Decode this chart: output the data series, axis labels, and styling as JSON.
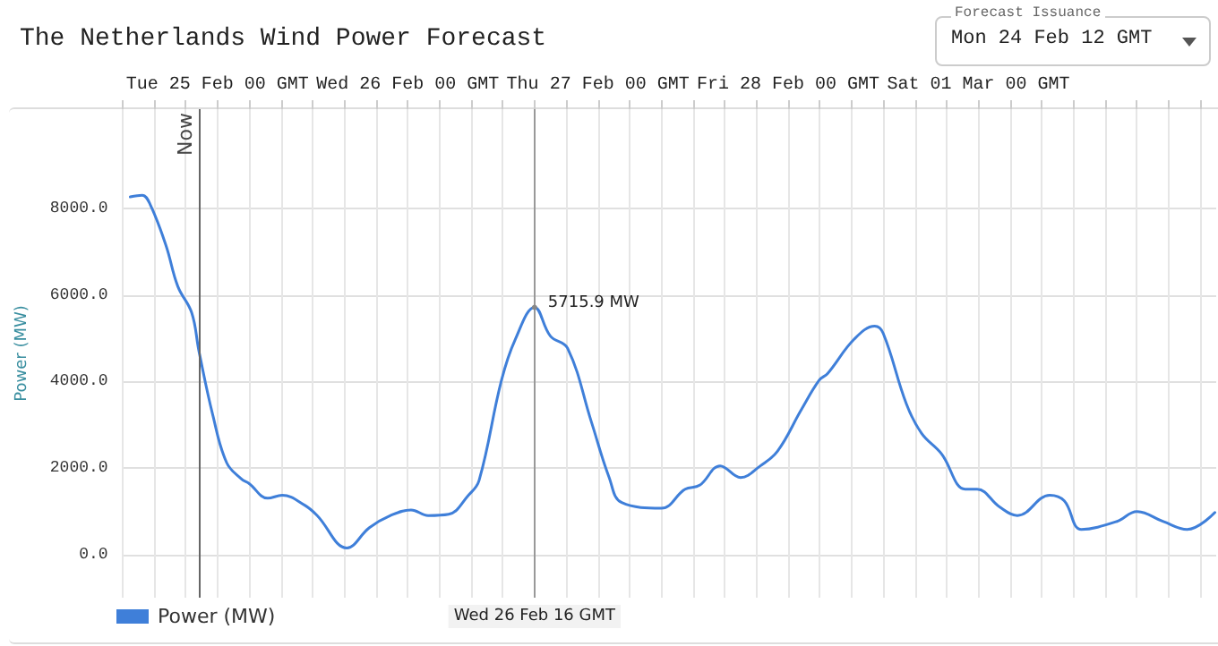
{
  "chart_data": {
    "type": "line",
    "title": "The Netherlands Wind Power Forecast",
    "ylabel": "Power (MW)",
    "x": [
      "--02-24T13:00",
      "--02-24T14:30",
      "--02-24T15:30",
      "--02-24T17:30",
      "--02-24T19:00",
      "--02-24T20:45",
      "--02-24T21:40",
      "--02-24T23:25",
      "--02-25T01:10",
      "--02-25T03:00",
      "--02-25T04:00",
      "--02-25T06:20",
      "--02-25T08:10",
      "--02-25T11:00",
      "--02-25T12:35",
      "--02-25T16:20",
      "--02-25T19:10",
      "--02-25T21:50",
      "--02-26T00:25",
      "--02-26T02:35",
      "--02-26T05:10",
      "--02-26T07:40",
      "--02-26T09:00",
      "--02-26T11:50",
      "--02-26T13:35",
      "--02-26T16:00",
      "--02-26T18:00",
      "--02-26T20:10",
      "--02-26T23:10",
      "--02-27T01:25",
      "--02-27T03:00",
      "--02-27T08:00",
      "--02-27T11:00",
      "--02-27T12:50",
      "--02-27T15:25",
      "--02-27T18:00",
      "--02-27T20:30",
      "--02-27T22:40",
      "--02-28T01:40",
      "--02-28T03:55",
      "--02-28T05:00",
      "--02-28T08:20",
      "--02-28T10:55",
      "--02-28T12:00",
      "--02-28T14:55",
      "--02-28T16:50",
      "--02-28T19:20",
      "--02-28T22:20",
      "--02-28T23:50",
      "--03-01T02:40",
      "--03-01T04:55",
      "--03-01T09:00",
      "--03-01T10:50",
      "--03-01T13:00",
      "--03-01T17:25",
      "--03-01T20:00",
      "--03-01T23:20",
      "--03-02T02:20",
      "--03-02T05:50"
    ],
    "series": [
      {
        "name": "Power (MW)",
        "color": "#3f7fd9",
        "values": [
          8270,
          8310,
          8100,
          7150,
          6200,
          5590,
          4700,
          3220,
          2120,
          1750,
          1640,
          1300,
          1370,
          1140,
          900,
          150,
          620,
          900,
          1030,
          900,
          930,
          1370,
          1710,
          4030,
          4980,
          5715.9,
          5050,
          4770,
          3070,
          1780,
          1200,
          1070,
          1510,
          1600,
          2050,
          1780,
          2050,
          2390,
          3350,
          4030,
          4190,
          4980,
          5280,
          5110,
          3480,
          2800,
          2330,
          1510,
          1510,
          1100,
          900,
          1370,
          1240,
          580,
          760,
          990,
          760,
          580,
          970
        ]
      }
    ],
    "xlim": [
      "--02-24T12:00",
      "--03-02T06:00"
    ],
    "xticks": [
      {
        "value": "--02-24T12:00",
        "label": null
      },
      {
        "value": "--02-24T16:00",
        "label": null
      },
      {
        "value": "--02-24T20:00",
        "label": null
      },
      {
        "value": "--02-25T00:00",
        "label": "Tue 25 Feb 00 GMT"
      },
      {
        "value": "--02-25T04:00",
        "label": null
      },
      {
        "value": "--02-25T08:00",
        "label": null
      },
      {
        "value": "--02-25T12:00",
        "label": null
      },
      {
        "value": "--02-25T16:00",
        "label": null
      },
      {
        "value": "--02-25T20:00",
        "label": null
      },
      {
        "value": "--02-26T00:00",
        "label": "Wed 26 Feb 00 GMT"
      },
      {
        "value": "--02-26T04:00",
        "label": null
      },
      {
        "value": "--02-26T08:00",
        "label": null
      },
      {
        "value": "--02-26T12:00",
        "label": null
      },
      {
        "value": "--02-26T16:00",
        "label": null
      },
      {
        "value": "--02-26T20:00",
        "label": null
      },
      {
        "value": "--02-27T00:00",
        "label": "Thu 27 Feb 00 GMT"
      },
      {
        "value": "--02-27T04:00",
        "label": null
      },
      {
        "value": "--02-27T08:00",
        "label": null
      },
      {
        "value": "--02-27T12:00",
        "label": null
      },
      {
        "value": "--02-27T16:00",
        "label": null
      },
      {
        "value": "--02-27T20:00",
        "label": null
      },
      {
        "value": "--02-28T00:00",
        "label": "Fri 28 Feb 00 GMT"
      },
      {
        "value": "--02-28T04:00",
        "label": null
      },
      {
        "value": "--02-28T08:00",
        "label": null
      },
      {
        "value": "--02-28T12:00",
        "label": null
      },
      {
        "value": "--02-28T16:00",
        "label": null
      },
      {
        "value": "--02-28T20:00",
        "label": null
      },
      {
        "value": "--03-01T00:00",
        "label": "Sat 01 Mar 00 GMT"
      },
      {
        "value": "--03-01T04:00",
        "label": null
      },
      {
        "value": "--03-01T08:00",
        "label": null
      },
      {
        "value": "--03-01T12:00",
        "label": null
      },
      {
        "value": "--03-01T16:00",
        "label": null
      },
      {
        "value": "--03-01T20:00",
        "label": null
      },
      {
        "value": "--03-02T00:00",
        "label": null
      },
      {
        "value": "--03-02T04:00",
        "label": null
      }
    ],
    "ylim": [
      -1000,
      10300
    ],
    "yticks": [
      {
        "value": 0,
        "label": "0.0"
      },
      {
        "value": 2000,
        "label": "2000.0"
      },
      {
        "value": 4000,
        "label": "4000.0"
      },
      {
        "value": 6000,
        "label": "6000.0"
      },
      {
        "value": 8000,
        "label": "8000.0"
      }
    ],
    "ref_lines": [
      {
        "axis": "x",
        "value": "--02-24T21:40",
        "label": "Now",
        "color": "#666666"
      },
      {
        "axis": "x",
        "value": "--02-26T16:00",
        "label": "Wed 26 Feb 16 GMT",
        "color": "#999999"
      }
    ],
    "annotations": [
      "Forecast Issuance",
      "Mon 24 Feb 12 GMT",
      {
        "text": "5715.9 MW",
        "x": "--02-26T16:00",
        "y": 5715.9
      }
    ],
    "grid": true,
    "legend": "bottom left",
    "marker": "none",
    "line_style": "solid"
  }
}
